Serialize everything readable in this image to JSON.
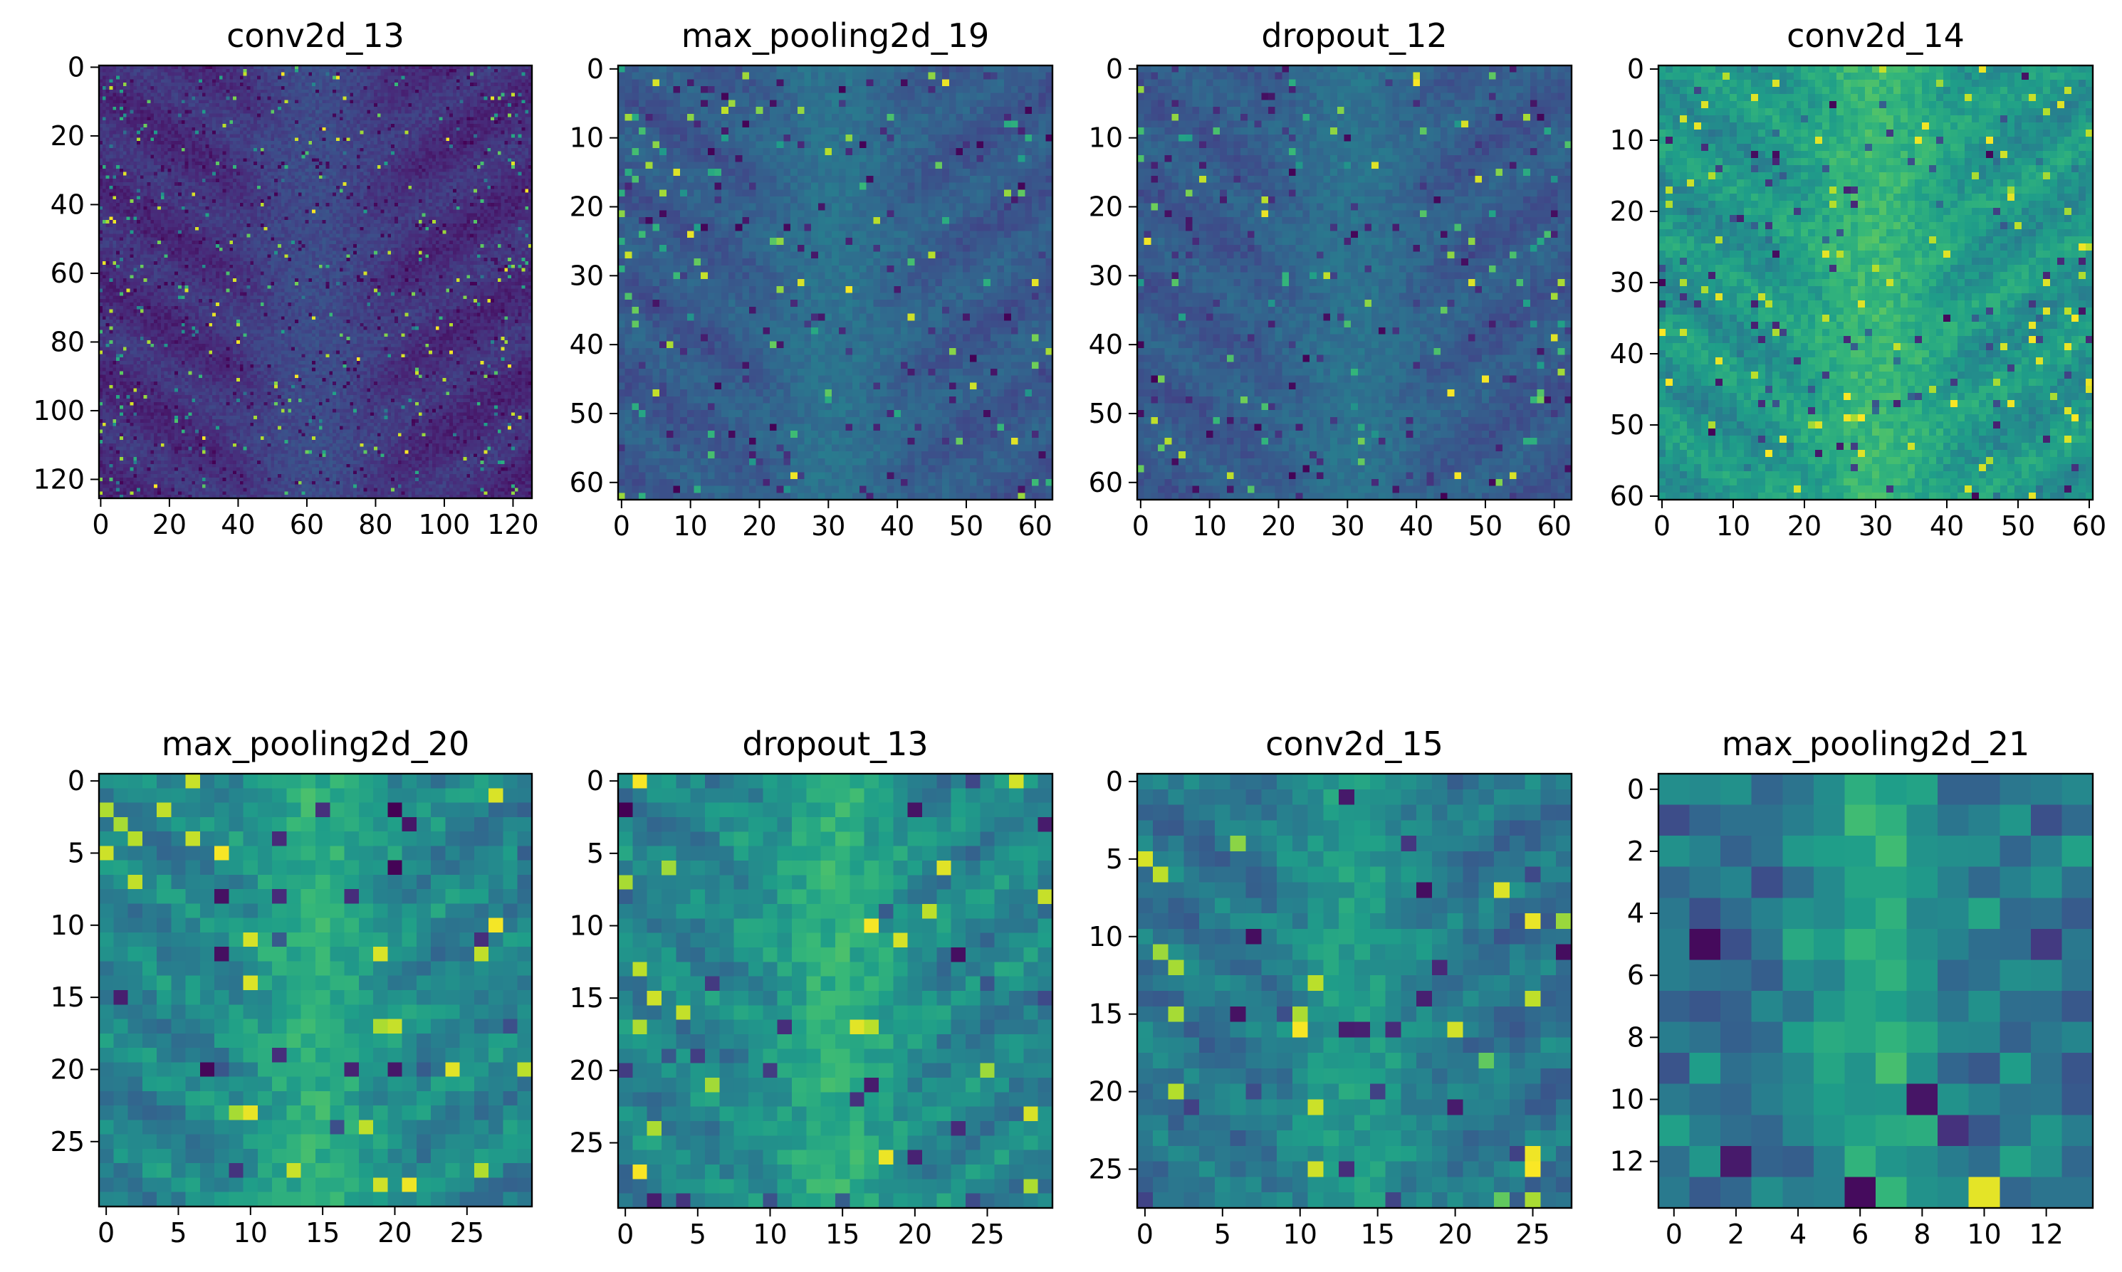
{
  "figure": {
    "colormap": "viridis",
    "colormap_stops": [
      "#440154",
      "#482878",
      "#3e4a89",
      "#31688e",
      "#26828e",
      "#1f9e89",
      "#35b779",
      "#6ece58",
      "#b5de2b",
      "#fde725"
    ]
  },
  "chart_data": [
    {
      "type": "heatmap",
      "title": "conv2d_13",
      "size": [
        126,
        126
      ],
      "xlim": [
        -0.5,
        125.5
      ],
      "ylim": [
        125.5,
        -0.5
      ],
      "x_ticks": [
        0,
        20,
        40,
        60,
        80,
        100,
        120
      ],
      "y_ticks": [
        0,
        20,
        40,
        60,
        80,
        100,
        120
      ],
      "dominant_range": [
        0.05,
        0.35
      ]
    },
    {
      "type": "heatmap",
      "title": "max_pooling2d_19",
      "size": [
        63,
        63
      ],
      "xlim": [
        -0.5,
        62.5
      ],
      "ylim": [
        62.5,
        -0.5
      ],
      "x_ticks": [
        0,
        10,
        20,
        30,
        40,
        50,
        60
      ],
      "y_ticks": [
        0,
        10,
        20,
        30,
        40,
        50,
        60
      ],
      "dominant_range": [
        0.2,
        0.5
      ]
    },
    {
      "type": "heatmap",
      "title": "dropout_12",
      "size": [
        63,
        63
      ],
      "xlim": [
        -0.5,
        62.5
      ],
      "ylim": [
        62.5,
        -0.5
      ],
      "x_ticks": [
        0,
        10,
        20,
        30,
        40,
        50,
        60
      ],
      "y_ticks": [
        0,
        10,
        20,
        30,
        40,
        50,
        60
      ],
      "dominant_range": [
        0.2,
        0.5
      ]
    },
    {
      "type": "heatmap",
      "title": "conv2d_14",
      "size": [
        61,
        61
      ],
      "xlim": [
        -0.5,
        60.5
      ],
      "ylim": [
        60.5,
        -0.5
      ],
      "x_ticks": [
        0,
        10,
        20,
        30,
        40,
        50,
        60
      ],
      "y_ticks": [
        0,
        10,
        20,
        30,
        40,
        50,
        60
      ],
      "dominant_range": [
        0.4,
        0.85
      ]
    },
    {
      "type": "heatmap",
      "title": "max_pooling2d_20",
      "size": [
        30,
        30
      ],
      "xlim": [
        -0.5,
        29.5
      ],
      "ylim": [
        29.5,
        -0.5
      ],
      "x_ticks": [
        0,
        5,
        10,
        15,
        20,
        25
      ],
      "y_ticks": [
        0,
        5,
        10,
        15,
        20,
        25
      ],
      "dominant_range": [
        0.3,
        0.85
      ]
    },
    {
      "type": "heatmap",
      "title": "dropout_13",
      "size": [
        30,
        30
      ],
      "xlim": [
        -0.5,
        29.5
      ],
      "ylim": [
        29.5,
        -0.5
      ],
      "x_ticks": [
        0,
        5,
        10,
        15,
        20,
        25
      ],
      "y_ticks": [
        0,
        5,
        10,
        15,
        20,
        25
      ],
      "dominant_range": [
        0.3,
        0.85
      ]
    },
    {
      "type": "heatmap",
      "title": "conv2d_15",
      "size": [
        28,
        28
      ],
      "xlim": [
        -0.5,
        27.5
      ],
      "ylim": [
        27.5,
        -0.5
      ],
      "x_ticks": [
        0,
        5,
        10,
        15,
        20,
        25
      ],
      "y_ticks": [
        0,
        5,
        10,
        15,
        20,
        25
      ],
      "dominant_range": [
        0.25,
        0.75
      ]
    },
    {
      "type": "heatmap",
      "title": "max_pooling2d_21",
      "size": [
        14,
        14
      ],
      "xlim": [
        -0.5,
        13.5
      ],
      "ylim": [
        13.5,
        -0.5
      ],
      "x_ticks": [
        0,
        2,
        4,
        6,
        8,
        10,
        12
      ],
      "y_ticks": [
        0,
        2,
        4,
        6,
        8,
        10,
        12
      ],
      "dominant_range": [
        0.2,
        0.9
      ]
    }
  ]
}
